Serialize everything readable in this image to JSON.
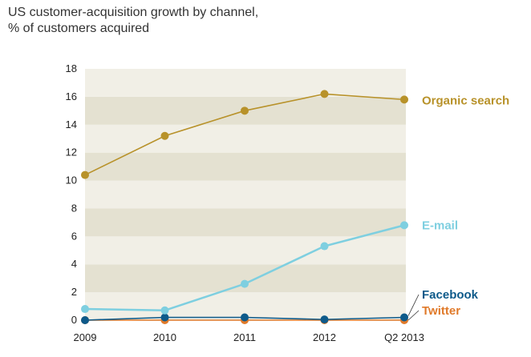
{
  "chart_data": {
    "type": "line",
    "title": "US customer-acquisition growth by channel,",
    "subtitle": "% of customers acquired",
    "xlabel": "",
    "ylabel": "",
    "categories": [
      "2009",
      "2010",
      "2011",
      "2012",
      "Q2 2013"
    ],
    "ylim": [
      0,
      18
    ],
    "yticks": [
      0,
      2,
      4,
      6,
      8,
      10,
      12,
      14,
      16,
      18
    ],
    "grid": "alternating horizontal bands",
    "legend": "direct labels at right of series",
    "series": [
      {
        "name": "Organic search",
        "color": "#B8922A",
        "values": [
          10.4,
          13.2,
          15.0,
          16.2,
          15.8
        ]
      },
      {
        "name": "E-mail",
        "color": "#7ECFE0",
        "values": [
          0.8,
          0.7,
          2.6,
          5.3,
          6.8
        ]
      },
      {
        "name": "Facebook",
        "color": "#0E5A8A",
        "values": [
          0.0,
          0.2,
          0.2,
          0.05,
          0.2
        ]
      },
      {
        "name": "Twitter",
        "color": "#E07A2A",
        "values": [
          0.0,
          0.0,
          0.0,
          0.0,
          0.0
        ]
      }
    ],
    "colors": {
      "band_light": "#F1EFE6",
      "band_dark": "#E4E1D1",
      "text": "#222222"
    }
  }
}
